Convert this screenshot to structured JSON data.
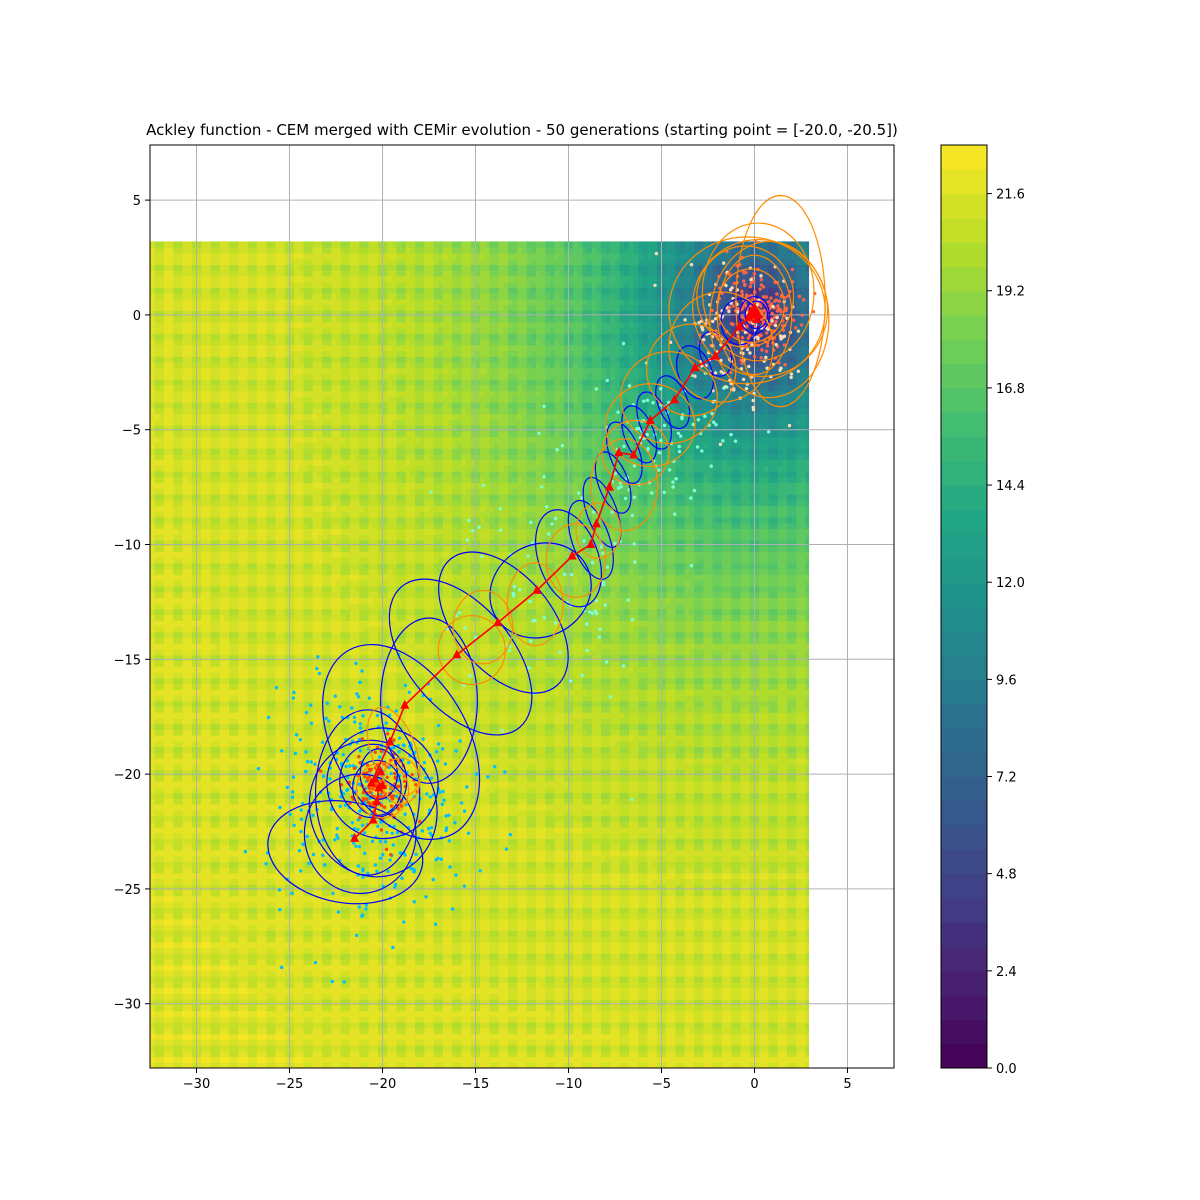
{
  "chart_data": {
    "type": "heatmap",
    "title": "Ackley function - CEM merged with CEMir evolution - 50 generations (starting point = [-20.0, -20.5])",
    "xlabel": "",
    "ylabel": "",
    "xlim": [
      -32.5,
      7.5
    ],
    "ylim": [
      -32.8,
      7.4
    ],
    "x_ticks": [
      -30,
      -25,
      -20,
      -15,
      -10,
      -5,
      0,
      5
    ],
    "y_ticks": [
      5,
      0,
      -5,
      -10,
      -15,
      -20,
      -25,
      -30
    ],
    "grid": true,
    "surface": {
      "function": "Ackley",
      "x_range": [
        -32.5,
        2.9
      ],
      "y_range": [
        -32.8,
        3.2
      ],
      "colormap": "viridis",
      "vmin": 0.0,
      "vmax": 22.8
    },
    "colorbar": {
      "ticks": [
        0.0,
        2.4,
        4.8,
        7.2,
        9.6,
        12.0,
        14.4,
        16.8,
        19.2,
        21.6
      ],
      "tick_labels": [
        "0.0",
        "2.4",
        "4.8",
        "7.2",
        "9.6",
        "12.0",
        "14.4",
        "16.8",
        "19.2",
        "21.6"
      ],
      "levels": 38
    },
    "series": [
      {
        "series_type": "mean_trajectory",
        "color": "#ff0000",
        "marker": "triangle",
        "points": [
          [
            -21.5,
            -22.8
          ],
          [
            -20.5,
            -22.0
          ],
          [
            -20.3,
            -21.2
          ],
          [
            -20.2,
            -20.6
          ],
          [
            -20.0,
            -20.5
          ],
          [
            -20.4,
            -20.2
          ],
          [
            -20.1,
            -19.9
          ],
          [
            -20.6,
            -20.4
          ],
          [
            -19.6,
            -18.6
          ],
          [
            -18.8,
            -17.0
          ],
          [
            -16.0,
            -14.8
          ],
          [
            -13.8,
            -13.4
          ],
          [
            -11.7,
            -12.0
          ],
          [
            -9.8,
            -10.5
          ],
          [
            -8.8,
            -10.0
          ],
          [
            -8.5,
            -9.1
          ],
          [
            -7.8,
            -7.5
          ],
          [
            -7.3,
            -6.0
          ],
          [
            -6.5,
            -6.1
          ],
          [
            -5.6,
            -4.6
          ],
          [
            -4.3,
            -3.7
          ],
          [
            -3.2,
            -2.3
          ],
          [
            -2.1,
            -1.8
          ],
          [
            -0.8,
            -0.5
          ],
          [
            -0.3,
            -0.1
          ],
          [
            0.0,
            0.3
          ],
          [
            0.2,
            0.0
          ],
          [
            0.1,
            -0.2
          ],
          [
            -0.2,
            0.1
          ],
          [
            0.0,
            0.0
          ]
        ]
      },
      {
        "series_type": "cem_covariance_ellipses",
        "color": "#0000ff",
        "ellipses": [
          [
            -22.0,
            -23.4,
            4.2,
            2.2,
            -10
          ],
          [
            -21.2,
            -22.6,
            3.0,
            2.6,
            0
          ],
          [
            -20.5,
            -21.5,
            3.4,
            3.0,
            20
          ],
          [
            -20.8,
            -20.8,
            2.8,
            3.6,
            0
          ],
          [
            -20.0,
            -20.4,
            3.0,
            2.4,
            -30
          ],
          [
            -20.5,
            -20.3,
            1.8,
            1.6,
            0
          ],
          [
            -20.3,
            -20.6,
            1.3,
            1.2,
            0
          ],
          [
            -20.2,
            -20.0,
            1.0,
            1.1,
            0
          ],
          [
            -19.0,
            -18.6,
            3.6,
            4.6,
            30
          ],
          [
            -17.5,
            -16.8,
            2.6,
            3.6,
            0
          ],
          [
            -15.8,
            -14.9,
            2.8,
            4.0,
            40
          ],
          [
            -13.5,
            -13.4,
            2.6,
            3.6,
            40
          ],
          [
            -11.5,
            -12.0,
            2.8,
            2.0,
            30
          ],
          [
            -10.0,
            -10.6,
            1.6,
            2.2,
            20
          ],
          [
            -8.8,
            -9.8,
            1.0,
            1.8,
            20
          ],
          [
            -8.2,
            -8.6,
            0.8,
            1.6,
            20
          ],
          [
            -7.6,
            -7.3,
            0.8,
            1.4,
            20
          ],
          [
            -7.0,
            -6.0,
            0.8,
            1.4,
            20
          ],
          [
            -6.2,
            -5.2,
            0.8,
            1.3,
            20
          ],
          [
            -5.4,
            -4.6,
            0.8,
            1.3,
            20
          ],
          [
            -4.4,
            -3.8,
            0.8,
            1.2,
            20
          ],
          [
            -3.2,
            -2.5,
            0.9,
            1.2,
            20
          ],
          [
            -2.1,
            -1.7,
            0.8,
            1.0,
            20
          ],
          [
            -0.8,
            -0.3,
            1.0,
            1.0,
            0
          ],
          [
            0.0,
            0.0,
            0.8,
            0.8,
            0
          ],
          [
            0.1,
            0.0,
            0.6,
            0.6,
            0
          ]
        ]
      },
      {
        "series_type": "cemir_covariance_ellipses",
        "color": "#ff8c00",
        "ellipses": [
          [
            -20.0,
            -20.7,
            1.4,
            1.2,
            0
          ],
          [
            -19.0,
            -20.3,
            1.0,
            1.0,
            0
          ],
          [
            -19.4,
            -19.0,
            1.2,
            2.0,
            20
          ],
          [
            -15.2,
            -14.6,
            1.8,
            1.5,
            0
          ],
          [
            -14.6,
            -13.6,
            1.6,
            1.6,
            0
          ],
          [
            -11.8,
            -12.6,
            1.5,
            1.8,
            0
          ],
          [
            -9.6,
            -10.7,
            1.6,
            1.6,
            0
          ],
          [
            -8.4,
            -9.4,
            1.2,
            1.2,
            0
          ],
          [
            -7.0,
            -7.4,
            1.8,
            2.0,
            0
          ],
          [
            -6.4,
            -6.0,
            1.8,
            1.4,
            0
          ],
          [
            -5.6,
            -4.8,
            2.4,
            1.8,
            0
          ],
          [
            -4.6,
            -3.6,
            2.6,
            2.0,
            0
          ],
          [
            -3.4,
            -2.4,
            2.4,
            2.0,
            0
          ],
          [
            -1.8,
            -1.4,
            2.8,
            2.4,
            0
          ],
          [
            -0.4,
            0.2,
            4.2,
            3.2,
            0
          ],
          [
            0.8,
            -0.2,
            3.2,
            3.4,
            0
          ],
          [
            0.2,
            1.0,
            3.0,
            3.0,
            0
          ],
          [
            0.3,
            0.3,
            3.6,
            3.0,
            30
          ],
          [
            -0.5,
            0.8,
            2.6,
            2.2,
            0
          ],
          [
            0.0,
            0.0,
            2.0,
            2.6,
            0
          ],
          [
            1.4,
            0.6,
            2.4,
            4.6,
            0
          ],
          [
            -0.2,
            0.4,
            1.8,
            1.6,
            0
          ]
        ]
      }
    ],
    "sample_clouds": [
      {
        "center": [
          -20.5,
          -21.0
        ],
        "spread": [
          2.6,
          2.6
        ],
        "count": 340,
        "color": "#00bfff"
      },
      {
        "center": [
          -20.2,
          -20.5
        ],
        "spread": [
          0.9,
          0.9
        ],
        "count": 120,
        "color": "#ff4500"
      },
      {
        "center": [
          -11.0,
          -11.5
        ],
        "spread": [
          3.0,
          3.0
        ],
        "count": 90,
        "color": "#7fffd4"
      },
      {
        "center": [
          -5.0,
          -5.0
        ],
        "spread": [
          1.8,
          1.8
        ],
        "count": 90,
        "color": "#7fffd4"
      },
      {
        "center": [
          0.0,
          0.0
        ],
        "spread": [
          1.1,
          1.1
        ],
        "count": 220,
        "color": "#ff6347"
      },
      {
        "center": [
          -0.8,
          -1.0
        ],
        "spread": [
          1.6,
          1.6
        ],
        "count": 140,
        "color": "#f5deb3"
      }
    ]
  }
}
